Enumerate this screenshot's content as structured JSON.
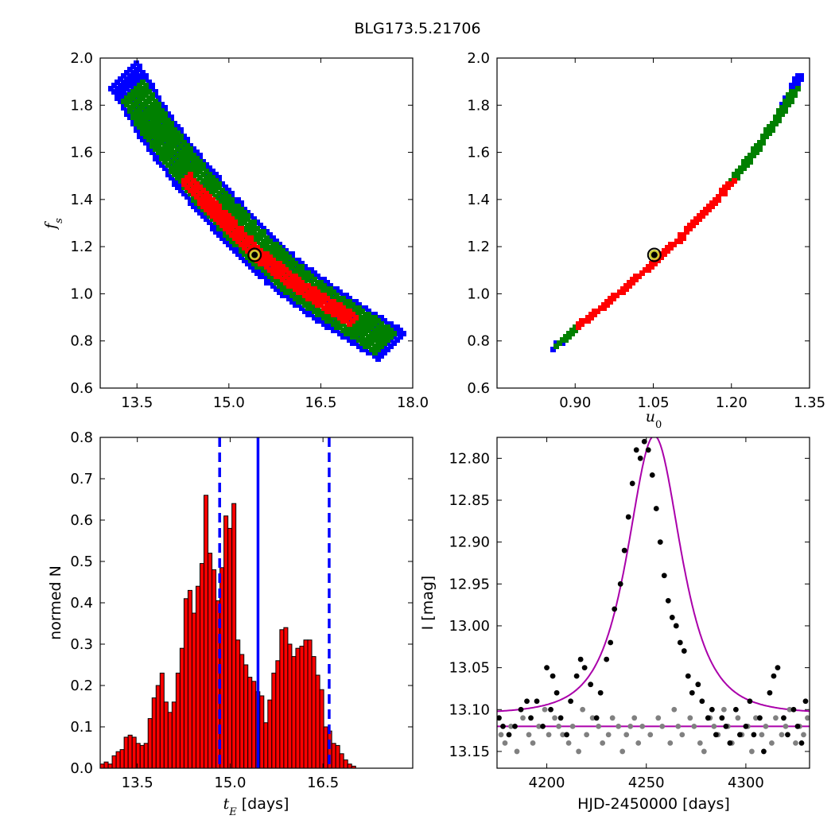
{
  "figure_title": "BLG173.5.21706",
  "colors": {
    "contour_outer": "#0000ff",
    "contour_mid": "#008000",
    "contour_inner": "#ff0000",
    "hist_bar": "#ff0000",
    "hist_edge": "#000000",
    "median_line": "#0000ff",
    "model_curve": "#aa00aa",
    "data_black": "#000000",
    "data_gray": "#808080",
    "best_fit_marker_edge": "#cccc33"
  },
  "chart_data": [
    {
      "type": "scatter",
      "panel": "top-left",
      "xlabel": "",
      "ylabel": "f_s",
      "ylabel_display": "fs",
      "xlim": [
        12.9,
        18.0
      ],
      "ylim": [
        0.6,
        2.0
      ],
      "xticks": [
        "13.5",
        "15.0",
        "16.5",
        "18.0"
      ],
      "yticks": [
        "0.6",
        "0.8",
        "1.0",
        "1.2",
        "1.4",
        "1.6",
        "1.8",
        "2.0"
      ],
      "series": [
        {
          "level": "outer",
          "x": [
            13.3,
            13.55,
            13.8,
            14.1,
            14.4,
            14.7,
            15.0,
            15.3,
            15.6,
            15.9,
            16.2,
            16.5,
            16.8,
            17.1,
            17.4,
            17.65
          ],
          "y": [
            1.92,
            1.82,
            1.71,
            1.6,
            1.5,
            1.41,
            1.32,
            1.24,
            1.16,
            1.09,
            1.03,
            0.97,
            0.92,
            0.87,
            0.82,
            0.78
          ],
          "half_width": 0.1
        },
        {
          "level": "mid",
          "x": [
            13.45,
            13.7,
            14.0,
            14.3,
            14.6,
            14.9,
            15.2,
            15.5,
            15.8,
            16.1,
            16.4,
            16.7,
            17.0,
            17.3,
            17.55
          ],
          "y": [
            1.86,
            1.75,
            1.64,
            1.54,
            1.44,
            1.35,
            1.27,
            1.19,
            1.12,
            1.05,
            0.99,
            0.94,
            0.89,
            0.84,
            0.79
          ],
          "half_width": 0.065
        },
        {
          "level": "inner",
          "x": [
            14.3,
            14.6,
            14.9,
            15.2,
            15.5,
            15.8,
            16.1,
            16.4,
            16.7,
            17.0
          ],
          "y": [
            1.49,
            1.4,
            1.32,
            1.24,
            1.16,
            1.1,
            1.04,
            0.99,
            0.94,
            0.89
          ],
          "half_width": 0.03
        }
      ],
      "best_fit": {
        "x": 15.42,
        "y": 1.165
      }
    },
    {
      "type": "scatter",
      "panel": "top-right",
      "xlabel": "u_0",
      "xlabel_display": "u0",
      "ylabel": "",
      "xlim": [
        0.75,
        1.35
      ],
      "ylim": [
        0.6,
        2.0
      ],
      "xticks": [
        "0.90",
        "1.05",
        "1.20",
        "1.35"
      ],
      "yticks": [
        "0.6",
        "0.8",
        "1.0",
        "1.2",
        "1.4",
        "1.6",
        "1.8",
        "2.0"
      ],
      "series": [
        {
          "level": "outer",
          "x": [
            0.865,
            0.9,
            0.95,
            1.0,
            1.05,
            1.1,
            1.15,
            1.2,
            1.25,
            1.3,
            1.33
          ],
          "y": [
            0.78,
            0.85,
            0.94,
            1.03,
            1.13,
            1.23,
            1.35,
            1.47,
            1.62,
            1.78,
            1.92
          ],
          "half_width": 0.006
        },
        {
          "level": "mid",
          "x": [
            0.87,
            0.9,
            0.95,
            1.0,
            1.05,
            1.1,
            1.15,
            1.2,
            1.25,
            1.3,
            1.32
          ],
          "y": [
            0.79,
            0.85,
            0.94,
            1.03,
            1.13,
            1.23,
            1.35,
            1.47,
            1.62,
            1.78,
            1.86
          ],
          "half_width": 0.004
        },
        {
          "level": "inner",
          "x": [
            0.91,
            0.95,
            1.0,
            1.05,
            1.1,
            1.15,
            1.2
          ],
          "y": [
            0.87,
            0.94,
            1.03,
            1.13,
            1.23,
            1.35,
            1.47
          ],
          "half_width": 0.002
        }
      ],
      "best_fit": {
        "x": 1.052,
        "y": 1.165
      }
    },
    {
      "type": "bar",
      "panel": "bottom-left",
      "xlabel": "t_E [days]",
      "xlabel_display": "tE [days]",
      "ylabel": "normed N",
      "xlim": [
        12.9,
        17.95
      ],
      "ylim": [
        0.0,
        0.8
      ],
      "xticks": [
        "13.5",
        "15.0",
        "16.5"
      ],
      "yticks": [
        "0.0",
        "0.1",
        "0.2",
        "0.3",
        "0.4",
        "0.5",
        "0.6",
        "0.7",
        "0.8"
      ],
      "bin_start": 12.9,
      "bin_width": 0.0645,
      "values": [
        0.01,
        0.015,
        0.01,
        0.03,
        0.04,
        0.045,
        0.075,
        0.08,
        0.075,
        0.06,
        0.055,
        0.06,
        0.12,
        0.17,
        0.2,
        0.23,
        0.16,
        0.135,
        0.16,
        0.23,
        0.29,
        0.41,
        0.43,
        0.375,
        0.44,
        0.495,
        0.66,
        0.52,
        0.48,
        0.405,
        0.485,
        0.61,
        0.58,
        0.64,
        0.31,
        0.275,
        0.25,
        0.22,
        0.21,
        0.185,
        0.175,
        0.11,
        0.165,
        0.23,
        0.26,
        0.335,
        0.34,
        0.3,
        0.27,
        0.29,
        0.295,
        0.31,
        0.31,
        0.27,
        0.225,
        0.19,
        0.1,
        0.09,
        0.06,
        0.055,
        0.035,
        0.02,
        0.01,
        0.005
      ],
      "vlines": [
        {
          "x": 14.83,
          "style": "dashed"
        },
        {
          "x": 15.45,
          "style": "solid"
        },
        {
          "x": 16.6,
          "style": "dashed"
        }
      ]
    },
    {
      "type": "scatter",
      "panel": "bottom-right",
      "xlabel": "HJD-2450000 [days]",
      "ylabel": "I [mag]",
      "xlim": [
        4175,
        4332
      ],
      "ylim": [
        13.17,
        12.775
      ],
      "y_inverted": true,
      "xticks": [
        "4200",
        "4250",
        "4300"
      ],
      "yticks": [
        "12.80",
        "12.85",
        "12.90",
        "12.95",
        "13.00",
        "13.05",
        "13.10",
        "13.15"
      ],
      "model": {
        "t0": 4254,
        "tE": 15.45,
        "u0": 1.052,
        "fs": 1.165,
        "baseline": 13.12
      },
      "model_flat": 13.12,
      "data_black": {
        "x": [
          4176,
          4178,
          4181,
          4184,
          4187,
          4190,
          4192,
          4195,
          4198,
          4200,
          4202,
          4203,
          4205,
          4207,
          4210,
          4212,
          4215,
          4217,
          4219,
          4222,
          4225,
          4227,
          4230,
          4232,
          4234,
          4237,
          4239,
          4241,
          4243,
          4245,
          4247,
          4249,
          4251,
          4253,
          4255,
          4257,
          4259,
          4261,
          4263,
          4265,
          4267,
          4269,
          4271,
          4273,
          4276,
          4278,
          4281,
          4283,
          4285,
          4288,
          4290,
          4292,
          4295,
          4297,
          4300,
          4302,
          4304,
          4307,
          4309,
          4312,
          4314,
          4316,
          4319,
          4321,
          4324,
          4326,
          4328,
          4330
        ],
        "y": [
          13.11,
          13.12,
          13.13,
          13.12,
          13.1,
          13.09,
          13.11,
          13.09,
          13.12,
          13.05,
          13.1,
          13.06,
          13.08,
          13.11,
          13.13,
          13.09,
          13.06,
          13.04,
          13.05,
          13.07,
          13.11,
          13.08,
          13.04,
          13.02,
          12.98,
          12.95,
          12.91,
          12.87,
          12.83,
          12.79,
          12.8,
          12.78,
          12.79,
          12.82,
          12.86,
          12.9,
          12.94,
          12.97,
          12.99,
          13.0,
          13.02,
          13.03,
          13.06,
          13.08,
          13.07,
          13.09,
          13.11,
          13.1,
          13.13,
          13.11,
          13.12,
          13.14,
          13.1,
          13.13,
          13.12,
          13.09,
          13.13,
          13.11,
          13.15,
          13.08,
          13.06,
          13.05,
          13.11,
          13.13,
          13.1,
          13.12,
          13.14,
          13.09
        ],
        "shift": 0.022
      },
      "data_gray": {
        "x": [
          4177,
          4179,
          4182,
          4185,
          4188,
          4191,
          4193,
          4196,
          4199,
          4201,
          4204,
          4206,
          4208,
          4211,
          4213,
          4216,
          4218,
          4220,
          4223,
          4226,
          4228,
          4231,
          4233,
          4236,
          4238,
          4240,
          4242,
          4244,
          4246,
          4248,
          4252,
          4256,
          4258,
          4262,
          4264,
          4266,
          4268,
          4272,
          4274,
          4277,
          4279,
          4282,
          4284,
          4286,
          4289,
          4291,
          4293,
          4296,
          4298,
          4301,
          4303,
          4305,
          4308,
          4310,
          4313,
          4315,
          4318,
          4320,
          4322,
          4325,
          4327,
          4329,
          4331
        ],
        "y": [
          13.13,
          13.14,
          13.12,
          13.15,
          13.11,
          13.13,
          13.14,
          13.12,
          13.1,
          13.13,
          13.11,
          13.12,
          13.13,
          13.14,
          13.12,
          13.15,
          13.1,
          13.13,
          13.11,
          13.12,
          13.14,
          13.13,
          13.11,
          13.12,
          13.15,
          13.13,
          13.12,
          13.11,
          13.14,
          13.12,
          13.13,
          13.11,
          13.12,
          13.14,
          13.1,
          13.12,
          13.13,
          13.11,
          13.12,
          13.14,
          13.15,
          13.11,
          13.12,
          13.13,
          13.1,
          13.12,
          13.14,
          13.11,
          13.13,
          13.12,
          13.15,
          13.11,
          13.13,
          13.12,
          13.14,
          13.11,
          13.13,
          13.12,
          13.1,
          13.14,
          13.12,
          13.13,
          13.11
        ],
        "shift": 0.0
      }
    }
  ]
}
